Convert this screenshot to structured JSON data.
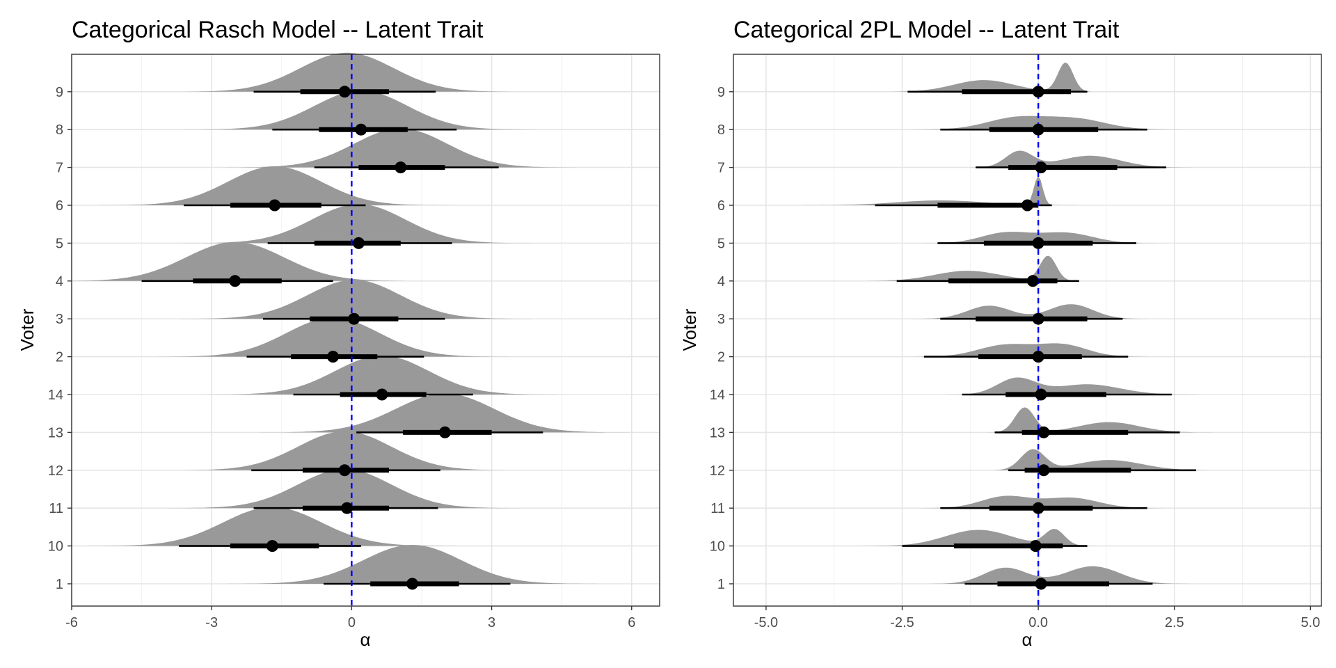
{
  "chart_data": [
    {
      "type": "ridgeline",
      "title": "Categorical Rasch Model -- Latent Trait",
      "xlabel": "α",
      "ylabel": "Voter",
      "xlim": [
        -6,
        6.6
      ],
      "xticks": [
        -6,
        -3,
        0,
        3,
        6
      ],
      "xtick_labels": [
        "-6",
        "-3",
        "0",
        "3",
        "6"
      ],
      "categories": [
        "1",
        "10",
        "11",
        "12",
        "13",
        "14",
        "2",
        "3",
        "4",
        "5",
        "6",
        "7",
        "8",
        "9"
      ],
      "reference_line": 0,
      "reference_color": "#0000ff",
      "series": [
        {
          "voter": "1",
          "median": 1.3,
          "inner": [
            0.4,
            2.3
          ],
          "outer": [
            -0.6,
            3.4
          ],
          "peaks": [
            {
              "mu": 1.3,
              "sigma": 1.05,
              "w": 1
            }
          ]
        },
        {
          "voter": "10",
          "median": -1.7,
          "inner": [
            -2.6,
            -0.7
          ],
          "outer": [
            -3.7,
            0.2
          ],
          "peaks": [
            {
              "mu": -1.7,
              "sigma": 1.05,
              "w": 1
            }
          ]
        },
        {
          "voter": "11",
          "median": -0.1,
          "inner": [
            -1.05,
            0.8
          ],
          "outer": [
            -2.1,
            1.85
          ],
          "peaks": [
            {
              "mu": -0.15,
              "sigma": 1.0,
              "w": 1
            }
          ]
        },
        {
          "voter": "12",
          "median": -0.15,
          "inner": [
            -1.05,
            0.8
          ],
          "outer": [
            -2.15,
            1.9
          ],
          "peaks": [
            {
              "mu": -0.15,
              "sigma": 1.0,
              "w": 1
            }
          ]
        },
        {
          "voter": "13",
          "median": 2.0,
          "inner": [
            1.1,
            3.0
          ],
          "outer": [
            0.1,
            4.1
          ],
          "peaks": [
            {
              "mu": 2.0,
              "sigma": 1.05,
              "w": 1
            }
          ]
        },
        {
          "voter": "14",
          "median": 0.65,
          "inner": [
            -0.25,
            1.6
          ],
          "outer": [
            -1.25,
            2.6
          ],
          "peaks": [
            {
              "mu": 0.65,
              "sigma": 1.0,
              "w": 1
            }
          ]
        },
        {
          "voter": "2",
          "median": -0.4,
          "inner": [
            -1.3,
            0.55
          ],
          "outer": [
            -2.25,
            1.55
          ],
          "peaks": [
            {
              "mu": -0.4,
              "sigma": 1.0,
              "w": 1
            }
          ]
        },
        {
          "voter": "3",
          "median": 0.05,
          "inner": [
            -0.9,
            1.0
          ],
          "outer": [
            -1.9,
            2.0
          ],
          "peaks": [
            {
              "mu": 0.05,
              "sigma": 1.0,
              "w": 1
            }
          ]
        },
        {
          "voter": "4",
          "median": -2.5,
          "inner": [
            -3.4,
            -1.5
          ],
          "outer": [
            -4.5,
            -0.4
          ],
          "peaks": [
            {
              "mu": -2.5,
              "sigma": 1.05,
              "w": 1
            }
          ]
        },
        {
          "voter": "5",
          "median": 0.15,
          "inner": [
            -0.8,
            1.05
          ],
          "outer": [
            -1.8,
            2.15
          ],
          "peaks": [
            {
              "mu": 0.15,
              "sigma": 1.0,
              "w": 1
            }
          ]
        },
        {
          "voter": "6",
          "median": -1.65,
          "inner": [
            -2.6,
            -0.65
          ],
          "outer": [
            -3.6,
            0.3
          ],
          "peaks": [
            {
              "mu": -1.65,
              "sigma": 1.0,
              "w": 1
            }
          ]
        },
        {
          "voter": "7",
          "median": 1.05,
          "inner": [
            0.15,
            2.0
          ],
          "outer": [
            -0.8,
            3.15
          ],
          "peaks": [
            {
              "mu": 1.05,
              "sigma": 1.0,
              "w": 1
            }
          ]
        },
        {
          "voter": "8",
          "median": 0.2,
          "inner": [
            -0.7,
            1.2
          ],
          "outer": [
            -1.7,
            2.25
          ],
          "peaks": [
            {
              "mu": 0.2,
              "sigma": 1.0,
              "w": 1
            }
          ]
        },
        {
          "voter": "9",
          "median": -0.15,
          "inner": [
            -1.1,
            0.8
          ],
          "outer": [
            -2.1,
            1.8
          ],
          "peaks": [
            {
              "mu": -0.1,
              "sigma": 1.0,
              "w": 1
            }
          ]
        }
      ]
    },
    {
      "type": "ridgeline",
      "title": "Categorical 2PL Model -- Latent Trait",
      "xlabel": "α",
      "ylabel": "Voter",
      "xlim": [
        -5.6,
        5.2
      ],
      "xticks": [
        -5.0,
        -2.5,
        0.0,
        2.5,
        5.0
      ],
      "xtick_labels": [
        "-5.0",
        "-2.5",
        "0.0",
        "2.5",
        "5.0"
      ],
      "categories": [
        "1",
        "10",
        "11",
        "12",
        "13",
        "14",
        "2",
        "3",
        "4",
        "5",
        "6",
        "7",
        "8",
        "9"
      ],
      "reference_line": 0,
      "reference_color": "#0000ff",
      "series": [
        {
          "voter": "1",
          "median": 0.05,
          "inner": [
            -0.75,
            1.3
          ],
          "outer": [
            -1.35,
            2.1
          ],
          "peaks": [
            {
              "mu": -0.6,
              "sigma": 0.4,
              "w": 0.55
            },
            {
              "mu": 1.0,
              "sigma": 0.5,
              "w": 0.6
            }
          ]
        },
        {
          "voter": "10",
          "median": -0.05,
          "inner": [
            -1.55,
            0.45
          ],
          "outer": [
            -2.5,
            0.9
          ],
          "peaks": [
            {
              "mu": -1.1,
              "sigma": 0.6,
              "w": 0.55
            },
            {
              "mu": 0.3,
              "sigma": 0.18,
              "w": 0.55
            }
          ]
        },
        {
          "voter": "11",
          "median": 0.0,
          "inner": [
            -0.9,
            1.0
          ],
          "outer": [
            -1.8,
            2.0
          ],
          "peaks": [
            {
              "mu": -0.6,
              "sigma": 0.45,
              "w": 0.4
            },
            {
              "mu": 0.6,
              "sigma": 0.5,
              "w": 0.35
            }
          ]
        },
        {
          "voter": "12",
          "median": 0.1,
          "inner": [
            -0.25,
            1.7
          ],
          "outer": [
            -0.55,
            2.9
          ],
          "peaks": [
            {
              "mu": -0.1,
              "sigma": 0.22,
              "w": 0.7
            },
            {
              "mu": 1.3,
              "sigma": 0.6,
              "w": 0.35
            }
          ]
        },
        {
          "voter": "13",
          "median": 0.1,
          "inner": [
            -0.3,
            1.65
          ],
          "outer": [
            -0.8,
            2.6
          ],
          "peaks": [
            {
              "mu": -0.25,
              "sigma": 0.18,
              "w": 0.85
            },
            {
              "mu": 1.3,
              "sigma": 0.55,
              "w": 0.35
            }
          ]
        },
        {
          "voter": "14",
          "median": 0.05,
          "inner": [
            -0.6,
            1.25
          ],
          "outer": [
            -1.4,
            2.45
          ],
          "peaks": [
            {
              "mu": -0.4,
              "sigma": 0.35,
              "w": 0.55
            },
            {
              "mu": 0.9,
              "sigma": 0.6,
              "w": 0.35
            }
          ]
        },
        {
          "voter": "2",
          "median": 0.0,
          "inner": [
            -1.1,
            0.8
          ],
          "outer": [
            -2.1,
            1.65
          ],
          "peaks": [
            {
              "mu": -0.6,
              "sigma": 0.5,
              "w": 0.4
            },
            {
              "mu": 0.45,
              "sigma": 0.45,
              "w": 0.4
            }
          ]
        },
        {
          "voter": "3",
          "median": 0.0,
          "inner": [
            -1.15,
            0.9
          ],
          "outer": [
            -1.8,
            1.55
          ],
          "peaks": [
            {
              "mu": -0.9,
              "sigma": 0.4,
              "w": 0.45
            },
            {
              "mu": 0.6,
              "sigma": 0.4,
              "w": 0.5
            }
          ]
        },
        {
          "voter": "4",
          "median": -0.1,
          "inner": [
            -1.65,
            0.35
          ],
          "outer": [
            -2.6,
            0.75
          ],
          "peaks": [
            {
              "mu": -1.3,
              "sigma": 0.6,
              "w": 0.35
            },
            {
              "mu": 0.18,
              "sigma": 0.15,
              "w": 0.85
            }
          ]
        },
        {
          "voter": "5",
          "median": 0.0,
          "inner": [
            -1.0,
            1.0
          ],
          "outer": [
            -1.85,
            1.8
          ],
          "peaks": [
            {
              "mu": -0.6,
              "sigma": 0.45,
              "w": 0.35
            },
            {
              "mu": 0.5,
              "sigma": 0.5,
              "w": 0.35
            }
          ]
        },
        {
          "voter": "6",
          "median": -0.2,
          "inner": [
            -1.85,
            0.0
          ],
          "outer": [
            -3.0,
            0.25
          ],
          "peaks": [
            {
              "mu": -1.8,
              "sigma": 0.8,
              "w": 0.22
            },
            {
              "mu": 0.0,
              "sigma": 0.08,
              "w": 1.3
            }
          ]
        },
        {
          "voter": "7",
          "median": 0.05,
          "inner": [
            -0.55,
            1.45
          ],
          "outer": [
            -1.15,
            2.35
          ],
          "peaks": [
            {
              "mu": -0.35,
              "sigma": 0.25,
              "w": 0.55
            },
            {
              "mu": 0.95,
              "sigma": 0.55,
              "w": 0.4
            }
          ]
        },
        {
          "voter": "8",
          "median": 0.0,
          "inner": [
            -0.9,
            1.1
          ],
          "outer": [
            -1.8,
            2.0
          ],
          "peaks": [
            {
              "mu": -0.4,
              "sigma": 0.55,
              "w": 0.4
            },
            {
              "mu": 0.7,
              "sigma": 0.55,
              "w": 0.35
            }
          ]
        },
        {
          "voter": "9",
          "median": 0.0,
          "inner": [
            -1.4,
            0.6
          ],
          "outer": [
            -2.4,
            0.9
          ],
          "peaks": [
            {
              "mu": -1.0,
              "sigma": 0.55,
              "w": 0.4
            },
            {
              "mu": 0.5,
              "sigma": 0.14,
              "w": 1.0
            }
          ]
        }
      ]
    }
  ]
}
